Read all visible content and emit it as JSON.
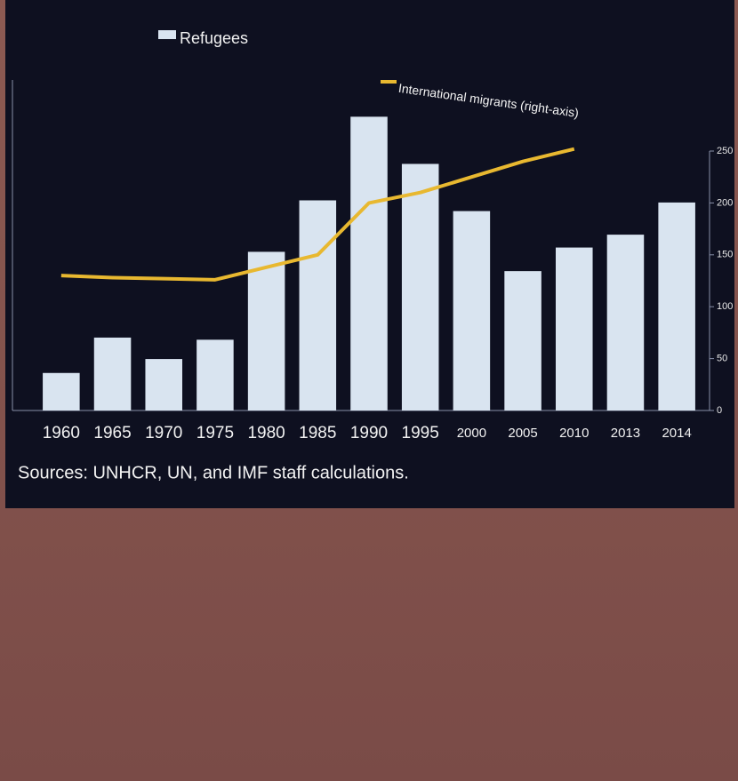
{
  "chart_data": {
    "type": "bar-line",
    "categories": [
      "1960",
      "1965",
      "1970",
      "1975",
      "1980",
      "1985",
      "1990",
      "1995",
      "2000",
      "2005",
      "2010",
      "2013",
      "2014"
    ],
    "ylim": [
      0,
      15
    ],
    "y2lim": [
      0,
      250
    ],
    "y2ticks": [
      0,
      50,
      100,
      150,
      200,
      250
    ],
    "series": [
      {
        "name": "Refugees",
        "color": "#d9e4f0",
        "type": "bar",
        "values": [
          1.75,
          3.4,
          2.4,
          3.3,
          7.4,
          9.8,
          13.7,
          11.5,
          9.3,
          6.5,
          7.6,
          8.2,
          9.7
        ]
      },
      {
        "name": "International migrants (right-axis)",
        "color": "#e8b830",
        "type": "line",
        "axis": "y2",
        "values": [
          130,
          128,
          127,
          126,
          138,
          150,
          200,
          210,
          225,
          240,
          252,
          null,
          null
        ]
      }
    ],
    "source": "Sources: UNHCR, UN, and IMF staff calculations."
  }
}
